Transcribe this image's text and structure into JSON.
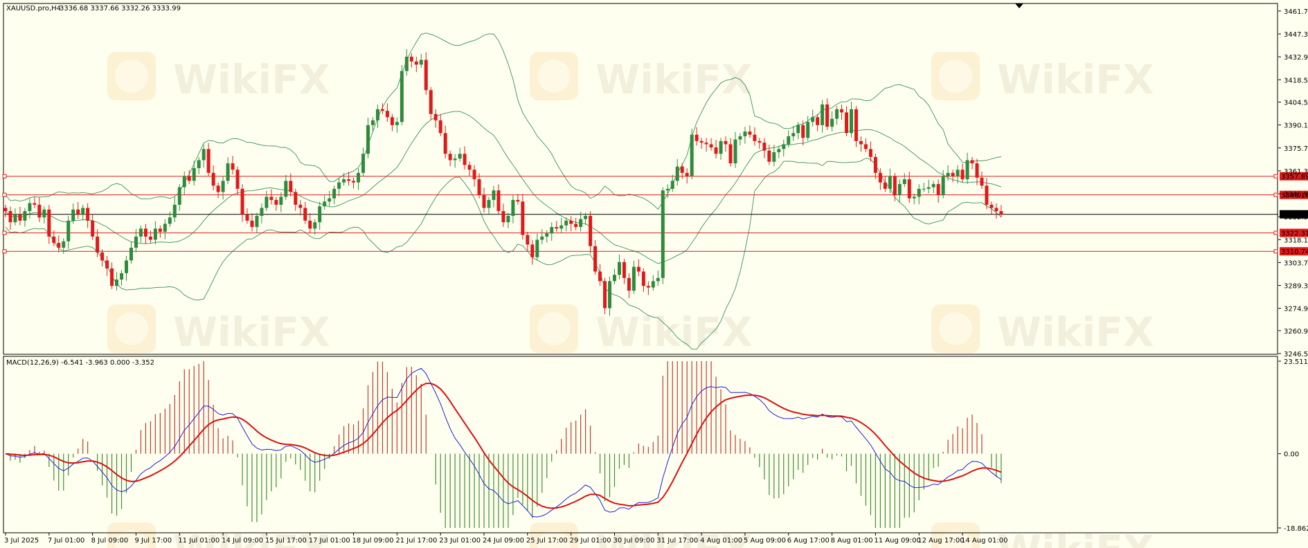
{
  "header": {
    "symbol": "XAUUSD.pro,H4",
    "ohlc": "3336.68 3337.66 3332.26 3333.99"
  },
  "macd_header": "MACD(12,26,9) -6.541 -3.963 0.000 -3.352",
  "watermark": "WikiFX",
  "colors": {
    "background": "#fffff0",
    "bull": "#2e8b3e",
    "bear": "#e01a1a",
    "bands": "#4a9a6a",
    "level": "#e01a1a",
    "macd_line": "#1f1fd0",
    "signal_line": "#d81010",
    "hist_pos": "#c0392b",
    "hist_neg": "#3e8e2e"
  },
  "chart_data": [
    {
      "type": "candlestick",
      "name": "price",
      "y_range": [
        3246.5,
        3466.0
      ],
      "y_ticks": [
        3461.7,
        3447.3,
        3432.9,
        3418.5,
        3404.5,
        3390.1,
        3375.7,
        3361.3,
        3346.9,
        3332.5,
        3318.1,
        3303.7,
        3289.3,
        3274.9,
        3260.9,
        3246.5
      ],
      "x_labels": [
        "3 Jul 2025",
        "7 Jul 01:00",
        "8 Jul 09:00",
        "9 Jul 17:00",
        "11 Jul 01:00",
        "14 Jul 09:00",
        "15 Jul 17:00",
        "17 Jul 01:00",
        "18 Jul 09:00",
        "21 Jul 17:00",
        "23 Jul 01:00",
        "24 Jul 09:00",
        "25 Jul 17:00",
        "29 Jul 01:00",
        "30 Jul 09:00",
        "31 Jul 17:00",
        "4 Aug 01:00",
        "5 Aug 09:00",
        "6 Aug 17:00",
        "8 Aug 01:00",
        "11 Aug 09:00",
        "12 Aug 17:00",
        "14 Aug 01:00"
      ],
      "closes": [
        3336,
        3329,
        3334,
        3330,
        3336,
        3341,
        3340,
        3332,
        3337,
        3320,
        3316,
        3313,
        3317,
        3330,
        3337,
        3334,
        3338,
        3330,
        3320,
        3310,
        3305,
        3300,
        3289,
        3293,
        3297,
        3305,
        3313,
        3320,
        3325,
        3320,
        3318,
        3325,
        3323,
        3328,
        3332,
        3340,
        3351,
        3358,
        3355,
        3363,
        3368,
        3375,
        3360,
        3352,
        3348,
        3355,
        3366,
        3362,
        3350,
        3334,
        3330,
        3326,
        3333,
        3338,
        3345,
        3343,
        3340,
        3345,
        3355,
        3348,
        3340,
        3338,
        3330,
        3325,
        3329,
        3339,
        3342,
        3344,
        3350,
        3354,
        3356,
        3355,
        3354,
        3360,
        3372,
        3390,
        3393,
        3400,
        3399,
        3395,
        3390,
        3392,
        3424,
        3433,
        3430,
        3428,
        3431,
        3412,
        3397,
        3393,
        3385,
        3372,
        3368,
        3369,
        3372,
        3365,
        3362,
        3356,
        3346,
        3338,
        3343,
        3349,
        3336,
        3329,
        3333,
        3343,
        3342,
        3321,
        3315,
        3307,
        3318,
        3320,
        3322,
        3326,
        3325,
        3327,
        3330,
        3328,
        3326,
        3331,
        3333,
        3314,
        3298,
        3292,
        3275,
        3292,
        3296,
        3304,
        3294,
        3286,
        3301,
        3298,
        3289,
        3288,
        3292,
        3294,
        3349,
        3350,
        3355,
        3364,
        3360,
        3358,
        3384,
        3380,
        3379,
        3378,
        3376,
        3372,
        3380,
        3378,
        3366,
        3381,
        3383,
        3386,
        3384,
        3380,
        3379,
        3374,
        3367,
        3373,
        3375,
        3378,
        3383,
        3385,
        3390,
        3382,
        3392,
        3395,
        3390,
        3403,
        3389,
        3394,
        3400,
        3398,
        3385,
        3400,
        3380,
        3378,
        3375,
        3370,
        3360,
        3354,
        3350,
        3358,
        3346,
        3353,
        3356,
        3344,
        3345,
        3350,
        3350,
        3351,
        3353,
        3346,
        3358,
        3360,
        3358,
        3362,
        3356,
        3368,
        3366,
        3357,
        3352,
        3340,
        3338,
        3336,
        3334
      ]
    },
    {
      "type": "bollinger_bands",
      "name": "bands",
      "period": 20,
      "deviations": 2
    },
    {
      "type": "horizontal_levels",
      "levels": [
        3357.89,
        3346.19,
        3322.31,
        3310.74
      ],
      "labels": [
        "3357.89",
        "3346.19",
        "3322.31",
        "3310.74"
      ],
      "current_price": 3333.99,
      "current_label": "3333.99"
    },
    {
      "type": "macd",
      "name": "macd",
      "fast": 12,
      "slow": 26,
      "signal": 9,
      "y_ticks": [
        23.511,
        0.0,
        -18.862
      ],
      "y_tick_labels": [
        "23.511",
        "0.00",
        "-18.862"
      ],
      "y_range": [
        -18.862,
        23.511
      ]
    }
  ]
}
